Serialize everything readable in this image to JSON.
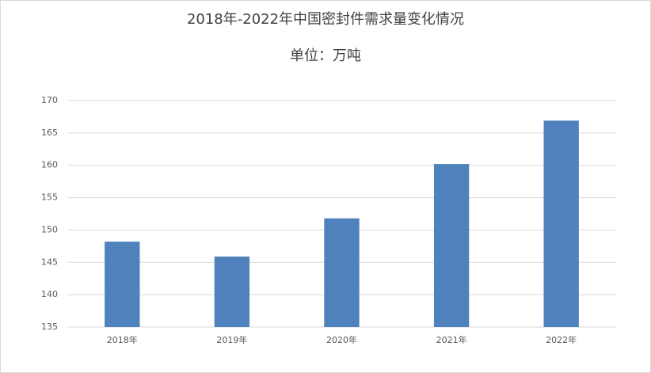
{
  "chart_data": {
    "type": "bar",
    "title": "2018年-2022年中国密封件需求量变化情况",
    "subtitle": "单位：万吨",
    "categories": [
      "2018年",
      "2019年",
      "2020年",
      "2021年",
      "2022年"
    ],
    "values": [
      148.2,
      145.9,
      151.8,
      160.2,
      166.9
    ],
    "color": "#4f81bd",
    "ylim": [
      135,
      170
    ],
    "yticks": [
      135,
      140,
      145,
      150,
      155,
      160,
      165,
      170
    ],
    "grid": true
  }
}
